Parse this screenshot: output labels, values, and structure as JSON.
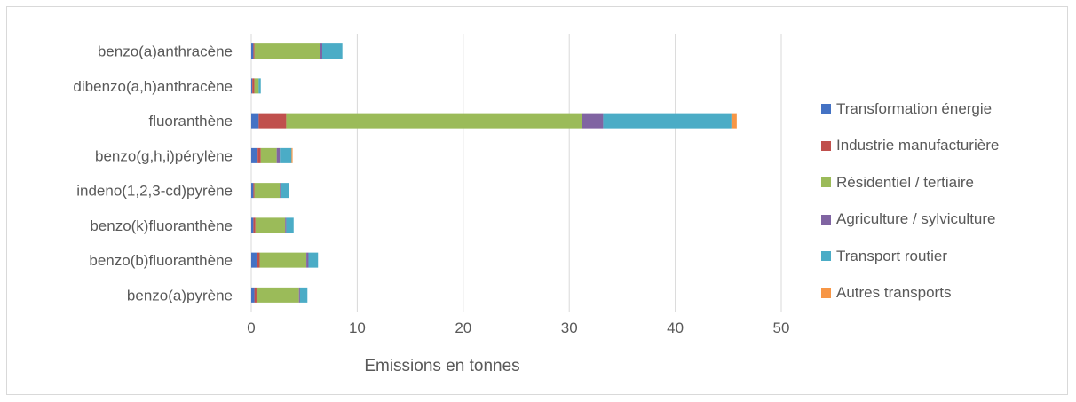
{
  "chart_data": {
    "type": "bar",
    "orientation": "horizontal",
    "stacked": true,
    "title": "",
    "xlabel": "Emissions en tonnes",
    "ylabel": "",
    "xlim": [
      0,
      50
    ],
    "xticks": [
      0,
      10,
      20,
      30,
      40,
      50
    ],
    "grid": "vertical",
    "legend_position": "right",
    "categories": [
      "benzo(a)anthracène",
      "dibenzo(a,h)anthracène",
      "fluoranthène",
      "benzo(g,h,i)pérylène",
      "indeno(1,2,3-cd)pyrène",
      "benzo(k)fluoranthène",
      "benzo(b)fluoranthène",
      "benzo(a)pyrène"
    ],
    "series": [
      {
        "name": "Transformation énergie",
        "color": "#4472C4",
        "values": [
          0.2,
          0.1,
          0.7,
          0.6,
          0.2,
          0.2,
          0.5,
          0.3
        ]
      },
      {
        "name": "Industrie manufacturière",
        "color": "#C0504D",
        "values": [
          0.1,
          0.2,
          2.6,
          0.3,
          0.1,
          0.2,
          0.3,
          0.2
        ]
      },
      {
        "name": "Résidentiel / tertiaire",
        "color": "#9BBB59",
        "values": [
          6.2,
          0.4,
          27.9,
          1.5,
          2.4,
          2.8,
          4.4,
          4.0
        ]
      },
      {
        "name": "Agriculture / sylviculture",
        "color": "#8064A2",
        "values": [
          0.2,
          0.0,
          2.0,
          0.3,
          0.1,
          0.1,
          0.2,
          0.1
        ]
      },
      {
        "name": "Transport routier",
        "color": "#4BACC6",
        "values": [
          1.9,
          0.2,
          12.1,
          1.1,
          0.8,
          0.7,
          0.9,
          0.7
        ]
      },
      {
        "name": "Autres transports",
        "color": "#F79646",
        "values": [
          0.0,
          0.0,
          0.5,
          0.1,
          0.0,
          0.0,
          0.0,
          0.0
        ]
      }
    ]
  }
}
